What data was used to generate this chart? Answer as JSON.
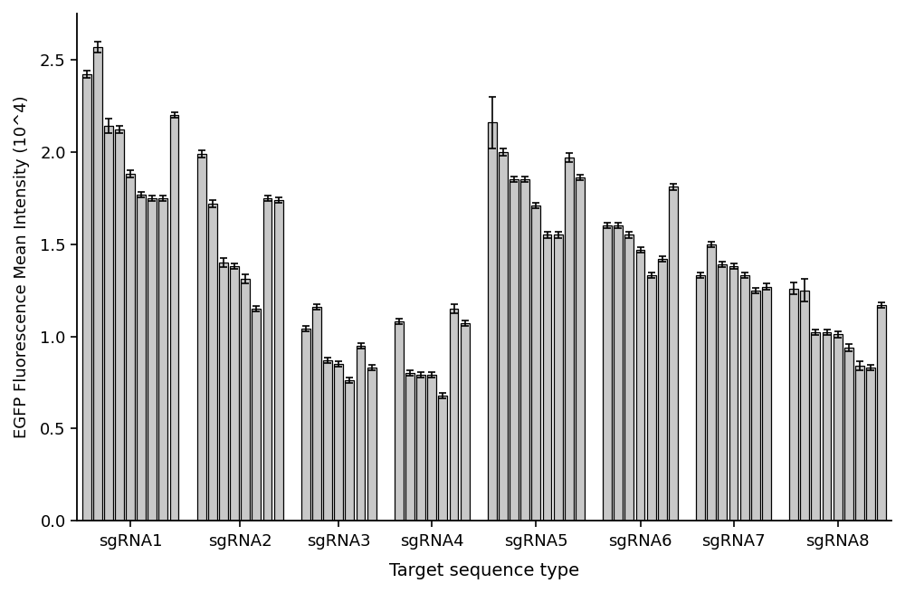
{
  "groups": [
    "sgRNA1",
    "sgRNA2",
    "sgRNA3",
    "sgRNA4",
    "sgRNA5",
    "sgRNA6",
    "sgRNA7",
    "sgRNA8"
  ],
  "bar_data": [
    [
      2.42,
      2.57,
      2.14,
      2.12,
      1.88,
      1.77,
      1.75,
      1.75,
      2.2
    ],
    [
      1.99,
      1.72,
      1.4,
      1.38,
      1.31,
      1.15,
      1.75,
      1.74
    ],
    [
      1.04,
      1.16,
      0.87,
      0.85,
      0.76,
      0.95,
      0.83
    ],
    [
      1.08,
      0.8,
      0.79,
      0.79,
      0.68,
      1.15,
      1.07
    ],
    [
      2.16,
      2.0,
      1.85,
      1.85,
      1.71,
      1.55,
      1.55,
      1.97,
      1.86
    ],
    [
      1.6,
      1.6,
      1.55,
      1.47,
      1.33,
      1.42,
      1.81
    ],
    [
      1.33,
      1.5,
      1.39,
      1.38,
      1.33,
      1.25,
      1.27
    ],
    [
      1.26,
      1.25,
      1.02,
      1.02,
      1.01,
      0.94,
      0.84,
      0.83,
      1.17
    ]
  ],
  "errors": [
    [
      0.02,
      0.03,
      0.04,
      0.02,
      0.02,
      0.015,
      0.015,
      0.015,
      0.015
    ],
    [
      0.02,
      0.02,
      0.025,
      0.015,
      0.025,
      0.015,
      0.015,
      0.015
    ],
    [
      0.015,
      0.015,
      0.015,
      0.015,
      0.015,
      0.015,
      0.015
    ],
    [
      0.015,
      0.015,
      0.015,
      0.015,
      0.015,
      0.025,
      0.015
    ],
    [
      0.14,
      0.02,
      0.015,
      0.015,
      0.015,
      0.015,
      0.015,
      0.025,
      0.015
    ],
    [
      0.015,
      0.015,
      0.015,
      0.015,
      0.015,
      0.015,
      0.015
    ],
    [
      0.015,
      0.015,
      0.015,
      0.015,
      0.015,
      0.015,
      0.015
    ],
    [
      0.03,
      0.06,
      0.015,
      0.015,
      0.015,
      0.02,
      0.025,
      0.015,
      0.015
    ]
  ],
  "bar_color": "#c8c8c8",
  "bar_edgecolor": "#000000",
  "xlabel": "Target sequence type",
  "ylabel": "EGFP Fluorescence Mean Intensity (10^4)",
  "ylim": [
    0.0,
    2.75
  ],
  "yticks": [
    0.0,
    0.5,
    1.0,
    1.5,
    2.0,
    2.5
  ],
  "figsize": [
    10.0,
    6.55
  ],
  "dpi": 100
}
